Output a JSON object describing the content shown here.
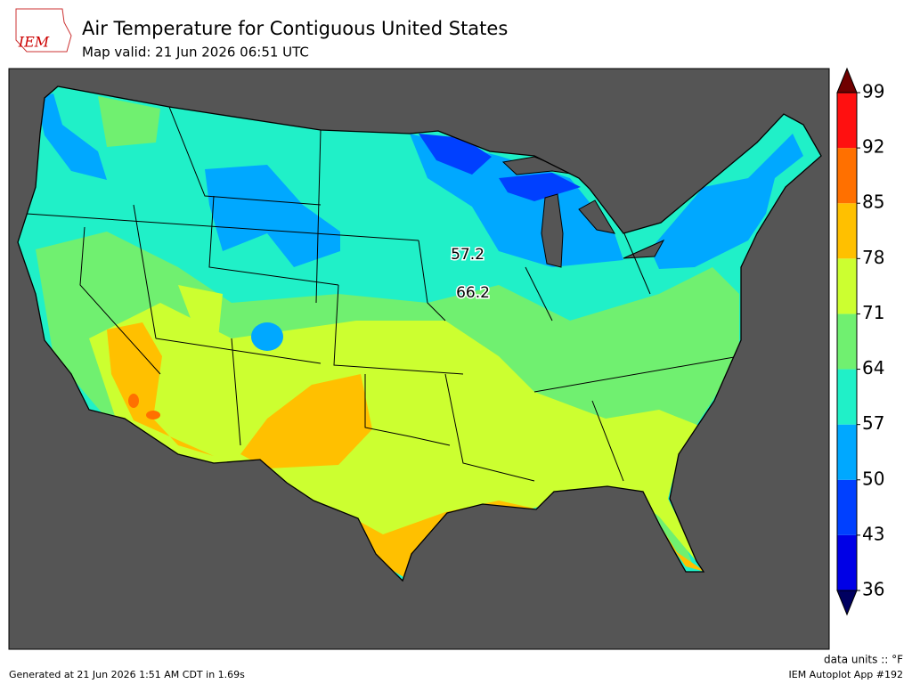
{
  "header": {
    "logo": "IEM",
    "title": "Air Temperature for Contiguous United States",
    "subtitle": "Map valid: 21 Jun 2026 06:51 UTC"
  },
  "colorbar": {
    "lim": [
      36,
      99
    ],
    "ticks": [
      36,
      43,
      50,
      57,
      64,
      71,
      78,
      85,
      92,
      99
    ],
    "colors": [
      "#0000e6",
      "#0040ff",
      "#00a8ff",
      "#20f0c8",
      "#70f070",
      "#ccff30",
      "#ffc000",
      "#ff7000",
      "#ff1010"
    ],
    "under_color": "#000060",
    "over_color": "#700000"
  },
  "contour_labels": [
    57.2,
    66.2
  ],
  "footer": {
    "units": "data units :: °F",
    "generated": "Generated at 21 Jun 2026 1:51 AM CDT in 1.69s",
    "app": "IEM Autoplot App #192"
  }
}
